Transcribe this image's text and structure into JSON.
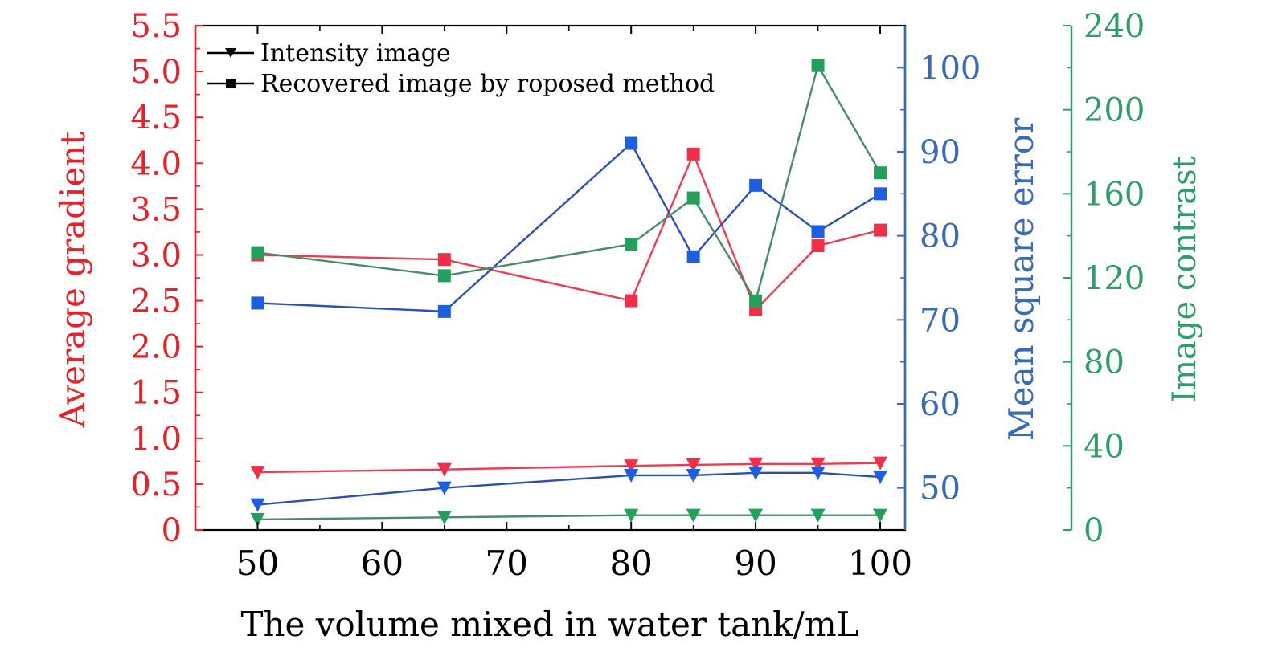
{
  "chart_data": {
    "type": "line",
    "x": [
      50,
      65,
      80,
      85,
      90,
      95,
      100
    ],
    "xlabel": "The volume mixed in water tank/mL",
    "xlim": [
      45,
      102
    ],
    "xticks": [
      50,
      60,
      70,
      80,
      90,
      100
    ],
    "axes": {
      "left": {
        "label": "Average gradient",
        "color": "#e8202a",
        "ylim": [
          0,
          5.5
        ],
        "ticks": [
          0,
          0.5,
          1.0,
          1.5,
          2.0,
          2.5,
          3.0,
          3.5,
          4.0,
          4.5,
          5.0,
          5.5
        ],
        "tick_labels": [
          "0",
          "0.5",
          "1.0",
          "1.5",
          "2.0",
          "2.5",
          "3.0",
          "3.5",
          "4.0",
          "4.5",
          "5.0",
          "5.5"
        ]
      },
      "right1": {
        "label": "Mean square error",
        "color": "#3a6ab4",
        "ylim": [
          45,
          105
        ],
        "ticks": [
          50,
          60,
          70,
          80,
          90,
          100
        ],
        "tick_labels": [
          "50",
          "60",
          "70",
          "80",
          "90",
          "100"
        ]
      },
      "right2": {
        "label": "Image contrast",
        "color": "#2e9e66",
        "ylim": [
          0,
          240
        ],
        "ticks": [
          0,
          40,
          80,
          120,
          160,
          200,
          240
        ],
        "tick_labels": [
          "0",
          "40",
          "80",
          "120",
          "160",
          "200",
          "240"
        ]
      }
    },
    "series": [
      {
        "name": "Average gradient - Recovered image",
        "axis": "left",
        "marker": "square",
        "line_color": "#ef3b52",
        "marker_color": "#f0304a",
        "values": [
          3.0,
          2.95,
          2.5,
          4.1,
          2.4,
          3.1,
          3.27
        ]
      },
      {
        "name": "Average gradient - Intensity image",
        "axis": "left",
        "marker": "triangle",
        "line_color": "#ef3b52",
        "marker_color": "#f0304a",
        "values": [
          0.63,
          0.66,
          0.7,
          0.71,
          0.72,
          0.72,
          0.73
        ]
      },
      {
        "name": "Mean square error - Recovered image",
        "axis": "right1",
        "marker": "square",
        "line_color": "#2f4fb0",
        "marker_color": "#1e5fe0",
        "values": [
          72,
          71,
          91,
          77.5,
          86,
          80.5,
          85
        ]
      },
      {
        "name": "Mean square error - Intensity image",
        "axis": "right1",
        "marker": "triangle",
        "line_color": "#2f4fb0",
        "marker_color": "#1e5fe0",
        "values": [
          48,
          50,
          51.5,
          51.5,
          51.8,
          51.8,
          51.3
        ]
      },
      {
        "name": "Image contrast - Recovered image",
        "axis": "right2",
        "marker": "square",
        "line_color": "#4a8a6a",
        "marker_color": "#22a05c",
        "values": [
          132,
          121,
          136,
          158,
          109,
          221,
          170
        ]
      },
      {
        "name": "Image contrast - Intensity image",
        "axis": "right2",
        "marker": "triangle",
        "line_color": "#4a8a6a",
        "marker_color": "#22a05c",
        "values": [
          5,
          6,
          7,
          7,
          7,
          7,
          7
        ]
      }
    ],
    "legend": {
      "position": "top-left",
      "entries": [
        {
          "label": "Intensity image",
          "marker": "triangle"
        },
        {
          "label": "Recovered image by roposed method",
          "marker": "square"
        }
      ]
    }
  }
}
